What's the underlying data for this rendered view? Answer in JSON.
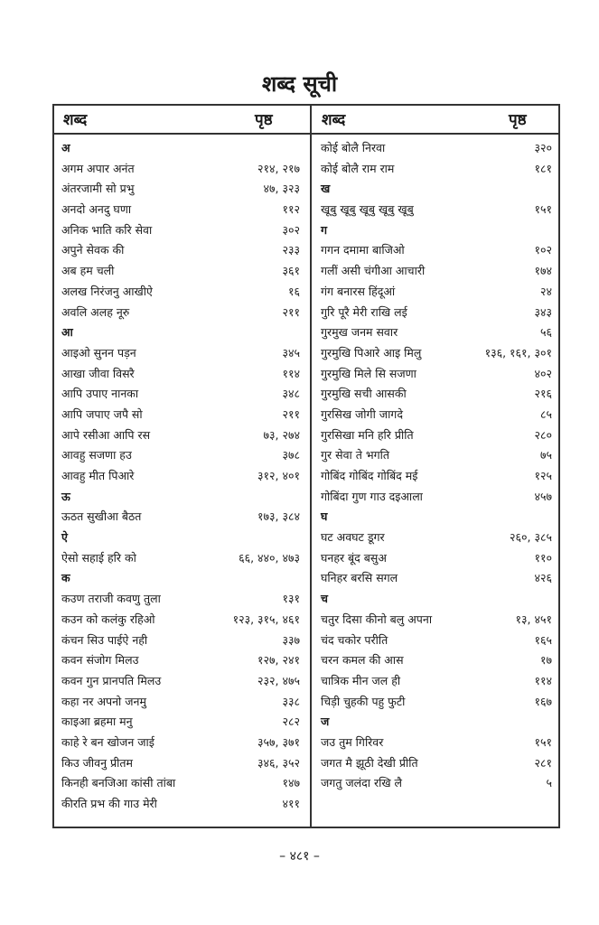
{
  "title": "शब्द सूची",
  "header": {
    "word": "शब्द",
    "page": "पृष्ठ"
  },
  "left": [
    {
      "w": "अ",
      "p": ""
    },
    {
      "w": "अगम अपार अनंत",
      "p": "२१४, २१७"
    },
    {
      "w": "अंतरजामी सो प्रभु",
      "p": "४७, ३२३"
    },
    {
      "w": "अनदो अनदु घणा",
      "p": "११२"
    },
    {
      "w": "अनिक भाति करि सेवा",
      "p": "३०२"
    },
    {
      "w": "अपुने सेवक की",
      "p": "२३३"
    },
    {
      "w": "अब हम चली",
      "p": "३६१"
    },
    {
      "w": "अलख निरंजनु आखीऐ",
      "p": "१६"
    },
    {
      "w": "अवलि अलह नूरु",
      "p": "२११"
    },
    {
      "w": "आ",
      "p": ""
    },
    {
      "w": "आइओ सुनन पड़न",
      "p": "३४५"
    },
    {
      "w": "आखा जीवा विसरै",
      "p": "११४"
    },
    {
      "w": "आपि उपाए नानका",
      "p": "३४८"
    },
    {
      "w": "आपि जपाए जपै सो",
      "p": "२११"
    },
    {
      "w": "आपे रसीआ आपि रस",
      "p": "७३, २७४"
    },
    {
      "w": "आवहु सजणा हउ",
      "p": "३७८"
    },
    {
      "w": "आवहु मीत पिआरे",
      "p": "३१२, ४०१"
    },
    {
      "w": "ऊ",
      "p": ""
    },
    {
      "w": "ऊठत सुखीआ बैठत",
      "p": "१७३, ३८४"
    },
    {
      "w": "ऐ",
      "p": ""
    },
    {
      "w": "ऐसो सहाई हरि को",
      "p": "६६, ४४०, ४७३"
    },
    {
      "w": "क",
      "p": ""
    },
    {
      "w": "कउण तराजी कवणु तुला",
      "p": "१३१"
    },
    {
      "w": "कउन को कलंकु रहिओ",
      "p": "१२३, ३१५, ४६१"
    },
    {
      "w": "कंचन सिउ पाईऐ नही",
      "p": "३३७"
    },
    {
      "w": "कवन संजोग मिलउ",
      "p": "१२७, २४१"
    },
    {
      "w": "कवन गुन प्रानपति मिलउ",
      "p": "२३२, ४७५"
    },
    {
      "w": "कहा नर अपनो जनमु",
      "p": "३३८"
    },
    {
      "w": "काइआ ब्रहमा मनु",
      "p": "२८२"
    },
    {
      "w": "काहे रे बन खोजन जाई",
      "p": "३५७, ३७१"
    },
    {
      "w": "किउ जीवनु प्रीतम",
      "p": "३४६, ३५२"
    },
    {
      "w": "किनही बनजिआ कांसी तांबा",
      "p": "१४७"
    },
    {
      "w": "कीरति प्रभ की गाउ मेरी",
      "p": "४११"
    }
  ],
  "right": [
    {
      "w": "कोई बोलै निरवा",
      "p": "३२०"
    },
    {
      "w": "कोई बोलै राम राम",
      "p": "१८१"
    },
    {
      "w": "ख",
      "p": ""
    },
    {
      "w": "खूबु खूबु खूबु खूबु खूबु",
      "p": "१५१"
    },
    {
      "w": "ग",
      "p": ""
    },
    {
      "w": "गगन दमामा बाजिओ",
      "p": "१०२"
    },
    {
      "w": "गलीं असी चंगीआ आचारी",
      "p": "१७४"
    },
    {
      "w": "गंग बनारस हिंदूआं",
      "p": "२४"
    },
    {
      "w": "गुरि पूरै मेरी राखि लई",
      "p": "३४३"
    },
    {
      "w": "गुरमुख जनम सवार",
      "p": "५६"
    },
    {
      "w": "गुरमुखि पिआरे आइ मिलु",
      "p": "१३६, १६१, ३०१"
    },
    {
      "w": "गुरमुखि मिले सि सजणा",
      "p": "४०२"
    },
    {
      "w": "गुरमुखि सची आसकी",
      "p": "२१६"
    },
    {
      "w": "गुरसिख जोगी जागदे",
      "p": "८५"
    },
    {
      "w": "गुरसिखा मनि हरि प्रीति",
      "p": "२८०"
    },
    {
      "w": "गुर सेवा ते भगति",
      "p": "७५"
    },
    {
      "w": "गोबिंद गोबिंद गोबिंद मई",
      "p": "१२५"
    },
    {
      "w": "गोबिंदा गुण गाउ दइआला",
      "p": "४५७"
    },
    {
      "w": "घ",
      "p": ""
    },
    {
      "w": "घट अवघट डूगर",
      "p": "२६०, ३८५"
    },
    {
      "w": "घनहर बूंद बसुअ",
      "p": "११०"
    },
    {
      "w": "घनिहर बरसि सगल",
      "p": "४२६"
    },
    {
      "w": "च",
      "p": ""
    },
    {
      "w": "चतुर दिसा कीनो बलु अपना",
      "p": "१३, ४५१"
    },
    {
      "w": "चंद चकोर परीति",
      "p": "१६५"
    },
    {
      "w": "चरन कमल की आस",
      "p": "१७"
    },
    {
      "w": "चात्रिक मीन जल ही",
      "p": "११४"
    },
    {
      "w": "चिड़ी चुहकी पहु फुटी",
      "p": "१६७"
    },
    {
      "w": "ज",
      "p": ""
    },
    {
      "w": "जउ तुम गिरिवर",
      "p": "१५१"
    },
    {
      "w": "जगत मै झूठी देखी प्रीति",
      "p": "२८१"
    },
    {
      "w": "जगतु जलंदा रखि लै",
      "p": "५"
    }
  ],
  "page_number": "– ४८१ –"
}
